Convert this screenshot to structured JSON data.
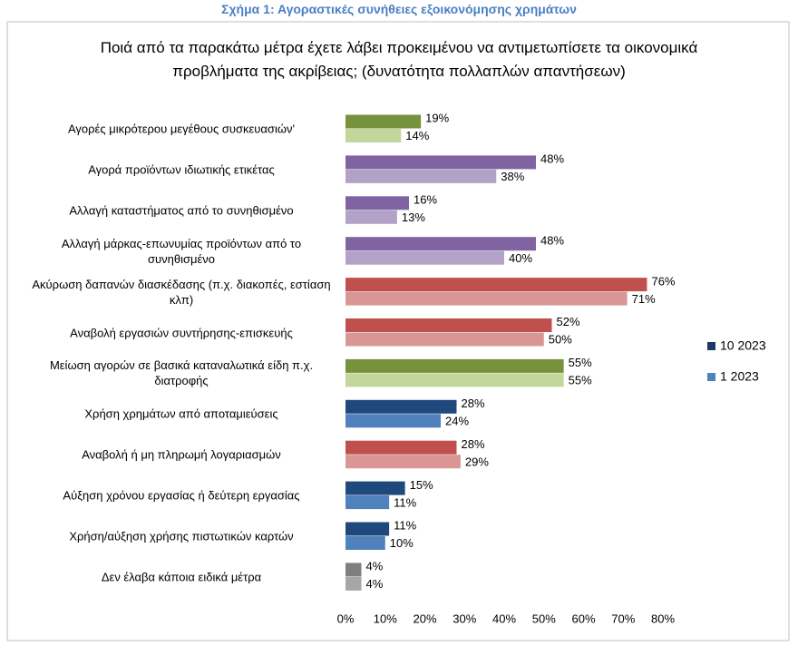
{
  "chart_data": {
    "type": "hbar",
    "caption": "Σχήμα 1: Αγοραστικές συνήθειες εξοικονόμησης χρημάτων",
    "title": "Ποιά από τα παρακάτω μέτρα έχετε λάβει προκειμένου να αντιμετωπίσετε τα οικονομικά προβλήματα της ακρίβειας; (δυνατότητα πολλαπλών απαντήσεων)",
    "categories": [
      "Αγορές μικρότερου μεγέθους συσκευασιών'",
      "Αγορά προϊόντων ιδιωτικής ετικέτας",
      "Αλλαγή καταστήματος από το συνηθισμένο",
      "Αλλαγή μάρκας-επωνυμίας προϊόντων από το συνηθισμένο",
      "Ακύρωση δαπανών διασκέδασης (π.χ. διακοπές, εστίαση κλπ)",
      "Αναβολή εργασιών συντήρησης-επισκευής",
      "Μείωση αγορών σε βασικά καταναλωτικά είδη π.χ. διατροφής",
      "Χρήση χρημάτων από αποταμιεύσεις",
      "Αναβολή ή μη πληρωμή λογαριασμών",
      "Αύξηση χρόνου εργασίας ή δεύτερη εργασίας",
      "Χρήση/αύξηση χρήσης πιστωτικών καρτών",
      "Δεν έλαβα κάποια ειδικά μέτρα"
    ],
    "series": [
      {
        "name": "10 2023",
        "color": "#1f3864",
        "values": [
          19,
          48,
          16,
          48,
          76,
          52,
          55,
          28,
          28,
          15,
          11,
          4
        ],
        "value_labels": [
          "19%",
          "48%",
          "16%",
          "48%",
          "76%",
          "52%",
          "55%",
          "28%",
          "28%",
          "15%",
          "11%",
          "4%"
        ],
        "colors": [
          "#76923c",
          "#8064a2",
          "#8064a2",
          "#8064a2",
          "#c0504d",
          "#c0504d",
          "#76923c",
          "#1f497d",
          "#c0504d",
          "#1f497d",
          "#1f497d",
          "#7f7f7f"
        ]
      },
      {
        "name": "1 2023",
        "color": "#4f81bd",
        "values": [
          14,
          38,
          13,
          40,
          71,
          50,
          55,
          24,
          29,
          11,
          10,
          4
        ],
        "value_labels": [
          "14%",
          "38%",
          "13%",
          "40%",
          "71%",
          "50%",
          "55%",
          "24%",
          "29%",
          "11%",
          "10%",
          "4%"
        ],
        "colors": [
          "#c3d69b",
          "#b3a2c7",
          "#b3a2c7",
          "#b3a2c7",
          "#d99694",
          "#d99694",
          "#c3d69b",
          "#4f81bd",
          "#d99694",
          "#4f81bd",
          "#4f81bd",
          "#a6a6a6"
        ]
      }
    ],
    "xlim": [
      0,
      80
    ],
    "xticks": [
      {
        "value": 0,
        "label": "0%"
      },
      {
        "value": 10,
        "label": "10%"
      },
      {
        "value": 20,
        "label": "20%"
      },
      {
        "value": 30,
        "label": "30%"
      },
      {
        "value": 40,
        "label": "40%"
      },
      {
        "value": 50,
        "label": "50%"
      },
      {
        "value": 60,
        "label": "60%"
      },
      {
        "value": 70,
        "label": "70%"
      },
      {
        "value": 80,
        "label": "80%"
      }
    ],
    "legend": "right"
  }
}
